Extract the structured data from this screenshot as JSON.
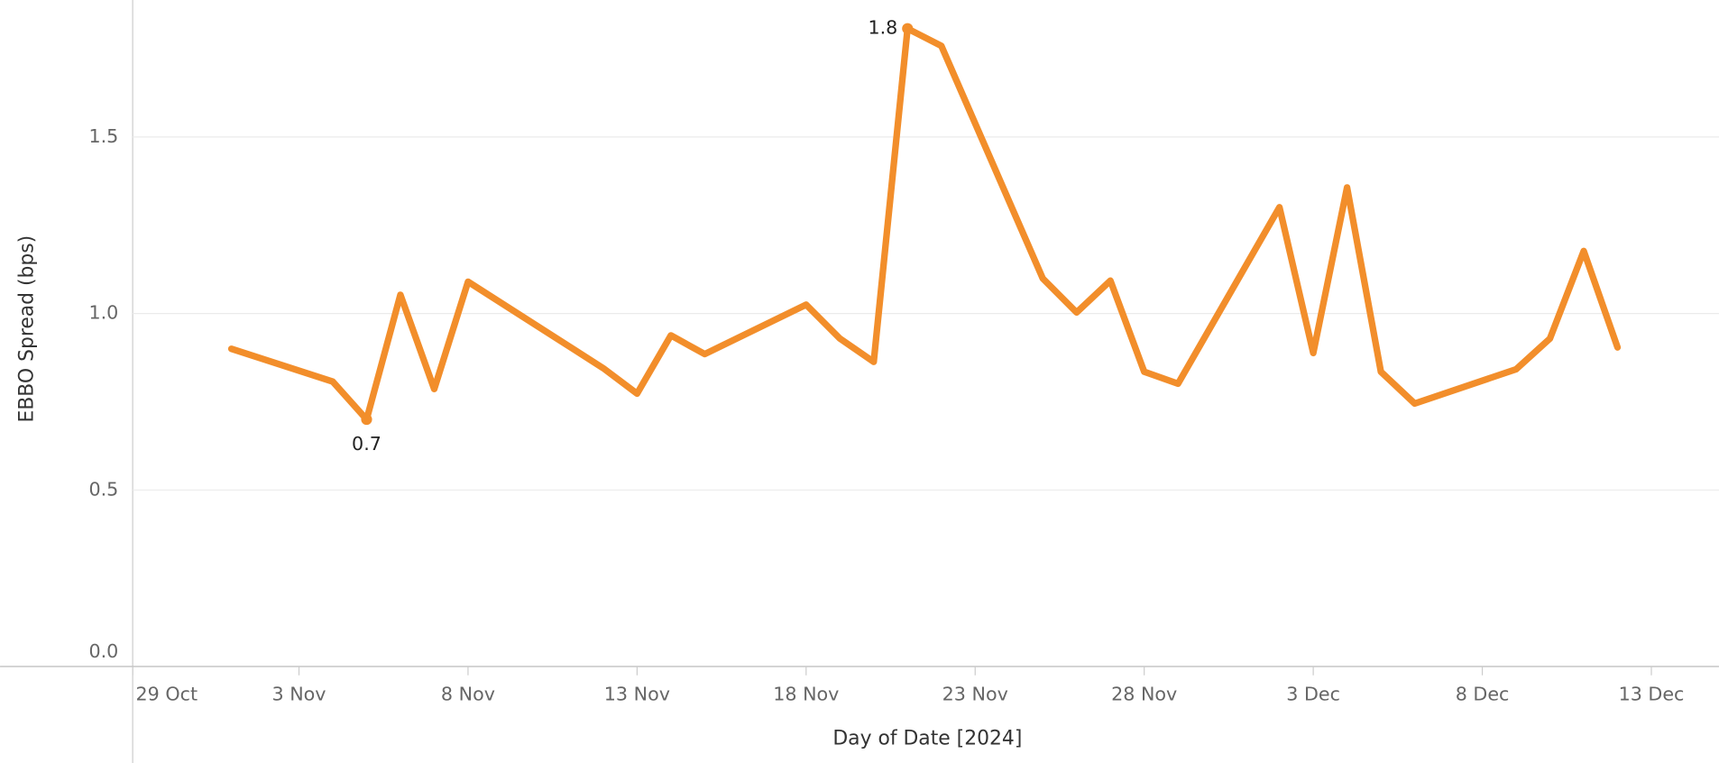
{
  "chart_data": {
    "type": "line",
    "x_label": "Day of Date [2024]",
    "y_label": "EBBO Spread (bps)",
    "x": [
      "2024-11-01",
      "2024-11-04",
      "2024-11-05",
      "2024-11-06",
      "2024-11-07",
      "2024-11-08",
      "2024-11-12",
      "2024-11-13",
      "2024-11-14",
      "2024-11-15",
      "2024-11-18",
      "2024-11-19",
      "2024-11-20",
      "2024-11-21",
      "2024-11-22",
      "2024-11-25",
      "2024-11-26",
      "2024-11-27",
      "2024-11-28",
      "2024-11-29",
      "2024-12-02",
      "2024-12-03",
      "2024-12-04",
      "2024-12-05",
      "2024-12-06",
      "2024-12-09",
      "2024-12-10",
      "2024-12-11",
      "2024-12-12"
    ],
    "series": [
      {
        "name": "EBBO Spread",
        "color": "#f28e2b",
        "values": [
          0.9,
          0.807,
          0.7,
          1.053,
          0.786,
          1.09,
          0.845,
          0.773,
          0.938,
          0.885,
          1.025,
          0.929,
          0.863,
          1.807,
          1.758,
          1.099,
          1.003,
          1.093,
          0.835,
          0.801,
          1.301,
          0.888,
          1.357,
          0.835,
          0.745,
          0.842,
          0.929,
          1.177,
          0.904
        ],
        "value_labels": [
          null,
          null,
          "0.7",
          null,
          null,
          null,
          null,
          null,
          null,
          null,
          null,
          null,
          null,
          "1.8",
          null,
          null,
          null,
          null,
          null,
          null,
          null,
          null,
          null,
          null,
          null,
          null,
          null,
          null,
          null
        ]
      }
    ],
    "xlim": [
      "2024-10-29",
      "2024-12-15"
    ],
    "xticks": [
      {
        "value": "2024-10-29",
        "label": "29 Oct"
      },
      {
        "value": "2024-11-03",
        "label": "3 Nov"
      },
      {
        "value": "2024-11-08",
        "label": "8 Nov"
      },
      {
        "value": "2024-11-13",
        "label": "13 Nov"
      },
      {
        "value": "2024-11-18",
        "label": "18 Nov"
      },
      {
        "value": "2024-11-23",
        "label": "23 Nov"
      },
      {
        "value": "2024-11-28",
        "label": "28 Nov"
      },
      {
        "value": "2024-12-03",
        "label": "3 Dec"
      },
      {
        "value": "2024-12-08",
        "label": "8 Dec"
      },
      {
        "value": "2024-12-13",
        "label": "13 Dec"
      }
    ],
    "ylim": [
      0,
      1.888
    ],
    "yticks": [
      {
        "value": 0,
        "label": "0.0"
      },
      {
        "value": 0.5,
        "label": "0.5"
      },
      {
        "value": 1,
        "label": "1.0"
      },
      {
        "value": 1.5,
        "label": "1.5"
      }
    ],
    "grid": true
  }
}
